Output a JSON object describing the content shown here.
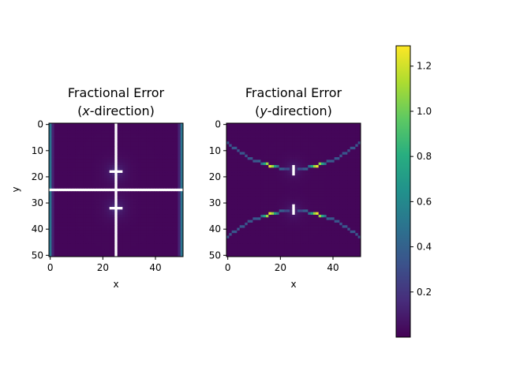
{
  "chart_data": [
    {
      "type": "heatmap",
      "title_line1": "Fractional Error",
      "title_line2_pre": "(",
      "title_line2_var": "x",
      "title_line2_post": "-direction)",
      "xlabel": "x",
      "ylabel": "y",
      "grid_size": [
        51,
        51
      ],
      "xlim": [
        0,
        50
      ],
      "ylim": [
        50,
        0
      ],
      "xticks": [
        0,
        20,
        40
      ],
      "yticks": [
        0,
        10,
        20,
        30,
        40,
        50
      ],
      "pattern": {
        "white_vertical_line_x": 25,
        "white_horizontal_line_y": 25,
        "hot_spots": [
          {
            "x": 25,
            "y": 18
          },
          {
            "x": 25,
            "y": 32
          }
        ],
        "edge_columns_value": 0.5,
        "background_value": 0.02
      }
    },
    {
      "type": "heatmap",
      "title_line1": "Fractional Error",
      "title_line2_pre": "(",
      "title_line2_var": "y",
      "title_line2_post": "-direction)",
      "xlabel": "x",
      "ylabel": "",
      "grid_size": [
        51,
        51
      ],
      "xlim": [
        0,
        50
      ],
      "ylim": [
        50,
        0
      ],
      "xticks": [
        0,
        20,
        40
      ],
      "yticks": [
        0,
        10,
        20,
        30,
        40,
        50
      ],
      "pattern": {
        "white_segments": [
          {
            "x": 25,
            "y": [
              16,
              19
            ]
          },
          {
            "x": 25,
            "y": [
              31,
              34
            ]
          }
        ],
        "upper_arc_y_center": 17,
        "lower_arc_y_center": 33,
        "arc_peak_value": 1.25,
        "background_value": 0.02
      }
    }
  ],
  "colorbar": {
    "colormap": "viridis",
    "vmin": 0.0,
    "vmax": 1.29,
    "ticks": [
      "0.2",
      "0.4",
      "0.6",
      "0.8",
      "1.0",
      "1.2"
    ]
  }
}
